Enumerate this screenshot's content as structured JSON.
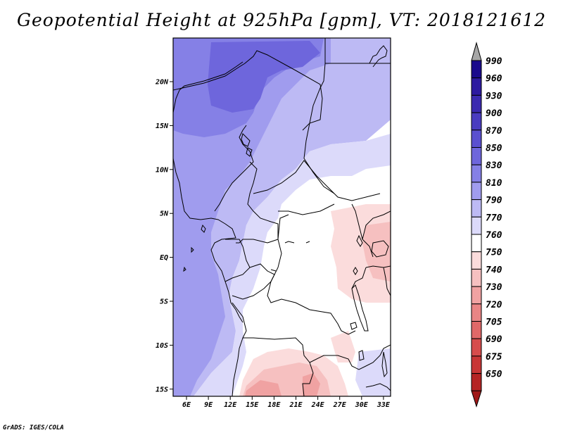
{
  "title": "Geopotential Height at 925hPa [gpm], VT: 2018121612",
  "credit": "GrADS: IGES/COLA",
  "map": {
    "lon_labels": [
      "6E",
      "9E",
      "12E",
      "15E",
      "18E",
      "21E",
      "24E",
      "27E",
      "30E",
      "33E"
    ],
    "lat_labels": [
      "20N",
      "15N",
      "10N",
      "5N",
      "EQ",
      "5S",
      "10S",
      "15S"
    ]
  },
  "colorbar": {
    "levels": [
      {
        "label": "990",
        "color": "#1a0a8c"
      },
      {
        "label": "960",
        "color": "#2d1aa0"
      },
      {
        "label": "930",
        "color": "#3b2ab0"
      },
      {
        "label": "900",
        "color": "#4a3cc0"
      },
      {
        "label": "870",
        "color": "#5a50cf"
      },
      {
        "label": "850",
        "color": "#6e66dc"
      },
      {
        "label": "830",
        "color": "#8580e6"
      },
      {
        "label": "810",
        "color": "#a09cee"
      },
      {
        "label": "790",
        "color": "#bdbaf4"
      },
      {
        "label": "770",
        "color": "#dcdafa"
      },
      {
        "label": "760",
        "color": "#ffffff"
      },
      {
        "label": "750",
        "color": "#fbdcdc"
      },
      {
        "label": "740",
        "color": "#f6c0c0"
      },
      {
        "label": "730",
        "color": "#f0a2a2"
      },
      {
        "label": "720",
        "color": "#e98585"
      },
      {
        "label": "705",
        "color": "#e06868"
      },
      {
        "label": "690",
        "color": "#d64c4c"
      },
      {
        "label": "675",
        "color": "#c83636"
      },
      {
        "label": "650",
        "color": "#b52424"
      }
    ],
    "top_arrow_color": "#a6a6a6",
    "bottom_arrow_color": "#a01818"
  }
}
